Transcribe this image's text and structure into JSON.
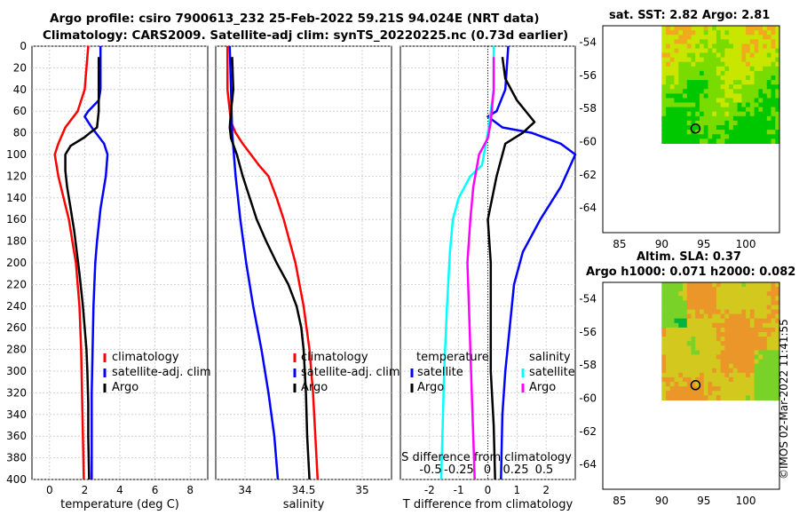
{
  "title_line1": "Argo profile: csiro 7900613_232 25-Feb-2022 59.21S 94.024E (NRT data)",
  "title_line2": "Climatology: CARS2009. Satellite-adj clim: synTS_20220225.nc (0.73d earlier)",
  "map1_title": "sat. SST: 2.82 Argo: 2.81",
  "map2_title1": "Altim. SLA: 0.37",
  "map2_title2": "Argo h1000: 0.071 h2000: 0.082",
  "timestamp": "©IMOS 02-Mar-2022 11:41:55",
  "legend_t": {
    "climatology": "climatology",
    "satellite": "satellite-adj. clim",
    "argo": "Argo"
  },
  "legend_s": {
    "climatology": "climatology",
    "satellite": "satellite-adj. clim",
    "argo": "Argo"
  },
  "legend_d": {
    "temperature": "temperature",
    "salinity": "salinity",
    "satellite": "satellite",
    "argo": "Argo"
  },
  "diff_s_label": "S difference from climatology",
  "diff_s_ticks": [
    "-0.5",
    "-0.25",
    "0",
    "0.25",
    "0.5"
  ],
  "colors": {
    "climatology": "#ff0000",
    "satellite": "#0000ff",
    "argo": "#000000",
    "t_diff_sat": "#0000ff",
    "s_diff_sat": "#00ffff",
    "s_diff_argo": "#ff00ff"
  },
  "chart_data": [
    {
      "type": "line",
      "id": "temperature",
      "xlabel": "temperature (deg C)",
      "ylabel": "",
      "xlim": [
        -1,
        9
      ],
      "ylim": [
        0,
        400
      ],
      "xticks": [
        0,
        2,
        4,
        6,
        8
      ],
      "yticks": [
        0,
        20,
        40,
        60,
        80,
        100,
        120,
        140,
        160,
        180,
        200,
        220,
        240,
        260,
        280,
        300,
        320,
        340,
        360,
        380,
        400
      ],
      "grid": true,
      "series": [
        {
          "name": "climatology",
          "color": "#ff0000",
          "points": [
            [
              2.2,
              0
            ],
            [
              2.1,
              20
            ],
            [
              2.0,
              40
            ],
            [
              1.6,
              60
            ],
            [
              0.9,
              75
            ],
            [
              0.5,
              90
            ],
            [
              0.3,
              100
            ],
            [
              0.5,
              120
            ],
            [
              0.8,
              140
            ],
            [
              1.1,
              160
            ],
            [
              1.3,
              180
            ],
            [
              1.5,
              200
            ],
            [
              1.7,
              240
            ],
            [
              1.8,
              280
            ],
            [
              1.85,
              320
            ],
            [
              1.9,
              360
            ],
            [
              1.95,
              400
            ]
          ]
        },
        {
          "name": "satellite-adj. clim",
          "color": "#0000ff",
          "points": [
            [
              2.9,
              0
            ],
            [
              2.9,
              40
            ],
            [
              2.8,
              50
            ],
            [
              2.2,
              60
            ],
            [
              2.0,
              65
            ],
            [
              2.4,
              75
            ],
            [
              3.1,
              90
            ],
            [
              3.3,
              100
            ],
            [
              3.2,
              120
            ],
            [
              2.9,
              150
            ],
            [
              2.7,
              180
            ],
            [
              2.6,
              200
            ],
            [
              2.5,
              240
            ],
            [
              2.45,
              280
            ],
            [
              2.4,
              320
            ],
            [
              2.4,
              360
            ],
            [
              2.4,
              400
            ]
          ]
        },
        {
          "name": "Argo",
          "color": "#000000",
          "points": [
            [
              2.8,
              10
            ],
            [
              2.8,
              30
            ],
            [
              2.8,
              60
            ],
            [
              2.7,
              75
            ],
            [
              2.3,
              80
            ],
            [
              2.0,
              84
            ],
            [
              1.2,
              92
            ],
            [
              0.9,
              100
            ],
            [
              0.9,
              115
            ],
            [
              1.0,
              130
            ],
            [
              1.2,
              150
            ],
            [
              1.4,
              170
            ],
            [
              1.55,
              190
            ],
            [
              1.7,
              210
            ],
            [
              1.9,
              240
            ],
            [
              2.0,
              260
            ],
            [
              2.1,
              280
            ],
            [
              2.15,
              300
            ],
            [
              2.2,
              330
            ],
            [
              2.2,
              360
            ],
            [
              2.25,
              400
            ]
          ]
        }
      ]
    },
    {
      "type": "line",
      "id": "salinity",
      "xlabel": "salinity",
      "ylabel": "",
      "xlim": [
        33.75,
        35.25
      ],
      "ylim": [
        0,
        400
      ],
      "xticks": [
        34,
        34.5,
        35
      ],
      "xticklabels": [
        "34",
        "34.5",
        "35"
      ],
      "grid": true,
      "series": [
        {
          "name": "climatology",
          "color": "#ff0000",
          "points": [
            [
              33.85,
              0
            ],
            [
              33.85,
              40
            ],
            [
              33.88,
              70
            ],
            [
              33.92,
              80
            ],
            [
              33.98,
              90
            ],
            [
              34.05,
              100
            ],
            [
              34.12,
              110
            ],
            [
              34.2,
              120
            ],
            [
              34.27,
              140
            ],
            [
              34.33,
              160
            ],
            [
              34.38,
              180
            ],
            [
              34.43,
              200
            ],
            [
              34.5,
              240
            ],
            [
              34.55,
              280
            ],
            [
              34.58,
              320
            ],
            [
              34.6,
              360
            ],
            [
              34.62,
              400
            ]
          ]
        },
        {
          "name": "satellite-adj. clim",
          "color": "#0000ff",
          "points": [
            [
              33.87,
              0
            ],
            [
              33.88,
              40
            ],
            [
              33.89,
              80
            ],
            [
              33.92,
              120
            ],
            [
              33.96,
              160
            ],
            [
              34.01,
              200
            ],
            [
              34.07,
              240
            ],
            [
              34.14,
              280
            ],
            [
              34.2,
              320
            ],
            [
              34.25,
              360
            ],
            [
              34.28,
              400
            ]
          ]
        },
        {
          "name": "Argo",
          "color": "#000000",
          "points": [
            [
              33.89,
              10
            ],
            [
              33.9,
              40
            ],
            [
              33.88,
              60
            ],
            [
              33.87,
              75
            ],
            [
              33.88,
              85
            ],
            [
              33.93,
              100
            ],
            [
              33.98,
              120
            ],
            [
              34.04,
              140
            ],
            [
              34.1,
              160
            ],
            [
              34.18,
              180
            ],
            [
              34.27,
              200
            ],
            [
              34.37,
              220
            ],
            [
              34.44,
              240
            ],
            [
              34.48,
              260
            ],
            [
              34.5,
              280
            ],
            [
              34.52,
              320
            ],
            [
              34.53,
              360
            ],
            [
              34.55,
              400
            ]
          ]
        }
      ]
    },
    {
      "type": "line",
      "id": "difference",
      "xlabel": "T difference from climatology",
      "ylabel": "",
      "xlim": [
        -3,
        3
      ],
      "ylim": [
        0,
        400
      ],
      "xticks": [
        -2,
        -1,
        0,
        1,
        2
      ],
      "grid": true,
      "s_scale": "0.25 S per 1 T-axis unit",
      "series": [
        {
          "name": "temperature satellite",
          "color": "#0000ff",
          "points": [
            [
              0.7,
              0
            ],
            [
              0.6,
              40
            ],
            [
              0.3,
              60
            ],
            [
              0.0,
              65
            ],
            [
              0.5,
              75
            ],
            [
              1.5,
              80
            ],
            [
              2.5,
              90
            ],
            [
              3.0,
              100
            ],
            [
              2.5,
              130
            ],
            [
              1.8,
              160
            ],
            [
              1.2,
              190
            ],
            [
              0.9,
              220
            ],
            [
              0.75,
              260
            ],
            [
              0.6,
              300
            ],
            [
              0.5,
              340
            ],
            [
              0.45,
              400
            ]
          ]
        },
        {
          "name": "temperature Argo",
          "color": "#000000",
          "points": [
            [
              0.5,
              10
            ],
            [
              0.6,
              30
            ],
            [
              1.0,
              50
            ],
            [
              1.6,
              70
            ],
            [
              1.2,
              80
            ],
            [
              0.6,
              90
            ],
            [
              0.3,
              120
            ],
            [
              0.0,
              160
            ],
            [
              0.1,
              200
            ],
            [
              0.1,
              260
            ],
            [
              0.1,
              300
            ],
            [
              0.2,
              350
            ],
            [
              0.25,
              400
            ]
          ]
        },
        {
          "name": "salinity satellite",
          "color": "#00ffff",
          "points": [
            [
              0.2,
              0
            ],
            [
              0.2,
              40
            ],
            [
              0.1,
              60
            ],
            [
              0.0,
              80
            ],
            [
              -0.2,
              110
            ],
            [
              -0.6,
              120
            ],
            [
              -1.0,
              140
            ],
            [
              -1.2,
              160
            ],
            [
              -1.3,
              190
            ],
            [
              -1.4,
              240
            ],
            [
              -1.5,
              300
            ],
            [
              -1.6,
              400
            ]
          ]
        },
        {
          "name": "salinity Argo",
          "color": "#ff00ff",
          "points": [
            [
              0.2,
              10
            ],
            [
              0.2,
              40
            ],
            [
              0.1,
              70
            ],
            [
              0.0,
              85
            ],
            [
              -0.3,
              100
            ],
            [
              -0.5,
              130
            ],
            [
              -0.6,
              160
            ],
            [
              -0.7,
              200
            ],
            [
              -0.65,
              240
            ],
            [
              -0.6,
              280
            ],
            [
              -0.55,
              320
            ],
            [
              -0.5,
              360
            ],
            [
              -0.45,
              400
            ]
          ]
        }
      ]
    },
    {
      "type": "heatmap",
      "id": "sst_map",
      "title": "sat. SST: 2.82 Argo: 2.81",
      "xlim": [
        83,
        104
      ],
      "ylim": [
        -65.5,
        -53
      ],
      "xticks": [
        85,
        90,
        95,
        100
      ],
      "yticks": [
        -54,
        -56,
        -58,
        -60,
        -62,
        -64
      ],
      "data_extent": {
        "lon": [
          90,
          104
        ],
        "lat": [
          -60.1,
          -53
        ]
      },
      "argo_position": [
        94.02,
        -59.21
      ]
    },
    {
      "type": "heatmap",
      "id": "sla_map",
      "title": "Altim. SLA: 0.37",
      "xlim": [
        83,
        104
      ],
      "ylim": [
        -65.5,
        -53
      ],
      "xticks": [
        85,
        90,
        95,
        100
      ],
      "yticks": [
        -54,
        -56,
        -58,
        -60,
        -62,
        -64
      ],
      "data_extent": {
        "lon": [
          90,
          104
        ],
        "lat": [
          -60.1,
          -53
        ]
      },
      "argo_position": [
        94.02,
        -59.21
      ]
    }
  ]
}
